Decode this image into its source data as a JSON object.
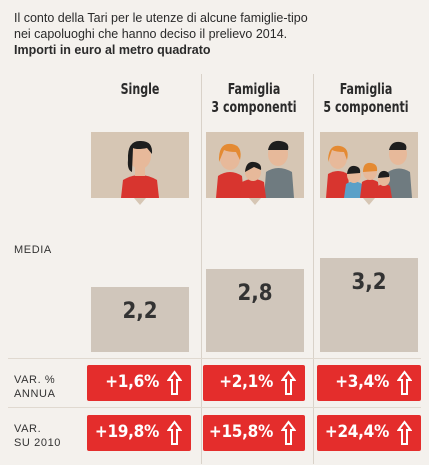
{
  "header": {
    "line1": "Il conto della Tari per le utenze di alcune famiglie-tipo",
    "line2": "nei capoluoghi che hanno deciso il prelievo 2014.",
    "line3": "Importi in euro al metro quadrato"
  },
  "row_labels": {
    "media": "MEDIA",
    "var_annua_1": "VAR. %",
    "var_annua_2": "ANNUA",
    "var_2010_1": "VAR.",
    "var_2010_2": "SU 2010"
  },
  "columns": [
    {
      "title1": "Single",
      "title2": "",
      "media": "2,2",
      "var_annua": "+1,6%",
      "var_2010": "+19,8%",
      "icon": "single-person-icon"
    },
    {
      "title1": "Famiglia",
      "title2": "3 componenti",
      "media": "2,8",
      "var_annua": "+2,1%",
      "var_2010": "+15,8%",
      "icon": "family-three-icon"
    },
    {
      "title1": "Famiglia",
      "title2": "5 componenti",
      "media": "3,2",
      "var_annua": "+3,4%",
      "var_2010": "+24,4%",
      "icon": "family-five-icon"
    }
  ],
  "colors": {
    "badge": "#e42d2c",
    "box": "#d0c6bb",
    "portrait": "#d6c6b4",
    "background": "#f4f1ed"
  },
  "chart_data": {
    "type": "bar",
    "categories": [
      "Single",
      "Famiglia 3 componenti",
      "Famiglia 5 componenti"
    ],
    "values": [
      2.2,
      2.8,
      3.2
    ],
    "ylabel": "MEDIA",
    "var_annua_pct": [
      1.6,
      2.1,
      3.4
    ],
    "var_su_2010_pct": [
      19.8,
      15.8,
      24.4
    ]
  }
}
